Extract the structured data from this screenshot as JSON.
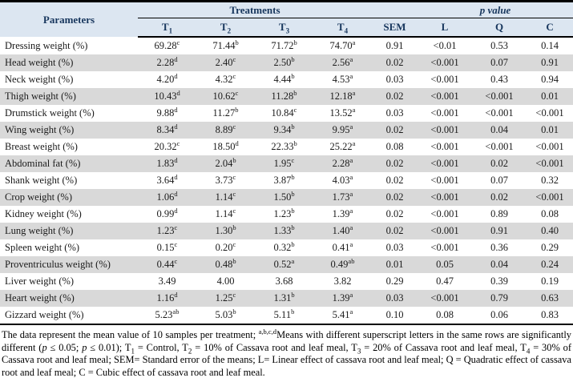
{
  "colors": {
    "header_bg": "#dce6f1",
    "header_text": "#17365d",
    "row_alt": "#d9d9d9",
    "border": "#000000"
  },
  "header": {
    "parameters": "Parameters",
    "treatments": "Treatments",
    "p_value": "p value",
    "treatment_cols": [
      {
        "base": "T",
        "sub": "1"
      },
      {
        "base": "T",
        "sub": "2"
      },
      {
        "base": "T",
        "sub": "3"
      },
      {
        "base": "T",
        "sub": "4"
      }
    ],
    "sem": "SEM",
    "effect_cols": [
      "L",
      "Q",
      "C"
    ]
  },
  "rows": [
    {
      "param": "Dressing weight (%)",
      "t": [
        [
          "69.28",
          "c"
        ],
        [
          "71.44",
          "b"
        ],
        [
          "71.72",
          "b"
        ],
        [
          "74.70",
          "a"
        ]
      ],
      "sem": "0.91",
      "l": "<0.01",
      "q": "0.53",
      "c": "0.14"
    },
    {
      "param": "Head weight (%)",
      "t": [
        [
          "2.28",
          "d"
        ],
        [
          "2.40",
          "c"
        ],
        [
          "2.50",
          "b"
        ],
        [
          "2.56",
          "a"
        ]
      ],
      "sem": "0.02",
      "l": "<0.001",
      "q": "0.07",
      "c": "0.91"
    },
    {
      "param": "Neck weight (%)",
      "t": [
        [
          "4.20",
          "d"
        ],
        [
          "4.32",
          "c"
        ],
        [
          "4.44",
          "b"
        ],
        [
          "4.53",
          "a"
        ]
      ],
      "sem": "0.03",
      "l": "<0.001",
      "q": "0.43",
      "c": "0.94"
    },
    {
      "param": "Thigh weight (%)",
      "t": [
        [
          "10.43",
          "d"
        ],
        [
          "10.62",
          "c"
        ],
        [
          "11.28",
          "b"
        ],
        [
          "12.18",
          "a"
        ]
      ],
      "sem": "0.02",
      "l": "<0.001",
      "q": "<0.001",
      "c": "0.01"
    },
    {
      "param": "Drumstick weight (%)",
      "t": [
        [
          "9.88",
          "d"
        ],
        [
          "11.27",
          "b"
        ],
        [
          "10.84",
          "c"
        ],
        [
          "13.52",
          "a"
        ]
      ],
      "sem": "0.03",
      "l": "<0.001",
      "q": "<0.001",
      "c": "<0.001"
    },
    {
      "param": "Wing weight (%)",
      "t": [
        [
          "8.34",
          "d"
        ],
        [
          "8.89",
          "c"
        ],
        [
          "9.34",
          "b"
        ],
        [
          "9.95",
          "a"
        ]
      ],
      "sem": "0.02",
      "l": "<0.001",
      "q": "0.04",
      "c": "0.01"
    },
    {
      "param": "Breast weight (%)",
      "t": [
        [
          "20.32",
          "c"
        ],
        [
          "18.50",
          "d"
        ],
        [
          "22.33",
          "b"
        ],
        [
          "25.22",
          "a"
        ]
      ],
      "sem": "0.08",
      "l": "<0.001",
      "q": "<0.001",
      "c": "<0.001"
    },
    {
      "param": "Abdominal fat (%)",
      "t": [
        [
          "1.83",
          "d"
        ],
        [
          "2.04",
          "b"
        ],
        [
          "1.95",
          "c"
        ],
        [
          "2.28",
          "a"
        ]
      ],
      "sem": "0.02",
      "l": "<0.001",
      "q": "0.02",
      "c": "<0.001"
    },
    {
      "param": "Shank weight (%)",
      "t": [
        [
          "3.64",
          "d"
        ],
        [
          "3.73",
          "c"
        ],
        [
          "3.87",
          "b"
        ],
        [
          "4.03",
          "a"
        ]
      ],
      "sem": "0.02",
      "l": "<0.001",
      "q": "0.07",
      "c": "0.32"
    },
    {
      "param": "Crop weight (%)",
      "t": [
        [
          "1.06",
          "d"
        ],
        [
          "1.14",
          "c"
        ],
        [
          "1.50",
          "b"
        ],
        [
          "1.73",
          "a"
        ]
      ],
      "sem": "0.02",
      "l": "<0.001",
      "q": "0.02",
      "c": "<0.001"
    },
    {
      "param": "Kidney weight (%)",
      "t": [
        [
          "0.99",
          "d"
        ],
        [
          "1.14",
          "c"
        ],
        [
          "1.23",
          "b"
        ],
        [
          "1.39",
          "a"
        ]
      ],
      "sem": "0.02",
      "l": "<0.001",
      "q": "0.89",
      "c": "0.08"
    },
    {
      "param": "Lung weight (%)",
      "t": [
        [
          "1.23",
          "c"
        ],
        [
          "1.30",
          "b"
        ],
        [
          "1.33",
          "b"
        ],
        [
          "1.40",
          "a"
        ]
      ],
      "sem": "0.02",
      "l": "<0.001",
      "q": "0.91",
      "c": "0.40"
    },
    {
      "param": "Spleen weight (%)",
      "t": [
        [
          "0.15",
          "c"
        ],
        [
          "0.20",
          "c"
        ],
        [
          "0.32",
          "b"
        ],
        [
          "0.41",
          "a"
        ]
      ],
      "sem": "0.03",
      "l": "<0.001",
      "q": "0.36",
      "c": "0.29"
    },
    {
      "param": "Proventriculus weight (%)",
      "t": [
        [
          "0.44",
          "c"
        ],
        [
          "0.48",
          "b"
        ],
        [
          "0.52",
          "a"
        ],
        [
          "0.49",
          "ab"
        ]
      ],
      "sem": "0.01",
      "l": "0.05",
      "q": "0.04",
      "c": "0.24"
    },
    {
      "param": "Liver weight (%)",
      "t": [
        [
          "3.49",
          ""
        ],
        [
          "4.00",
          ""
        ],
        [
          "3.68",
          ""
        ],
        [
          "3.82",
          ""
        ]
      ],
      "sem": "0.29",
      "l": "0.47",
      "q": "0.39",
      "c": "0.19"
    },
    {
      "param": "Heart weight (%)",
      "t": [
        [
          "1.16",
          "d"
        ],
        [
          "1.25",
          "c"
        ],
        [
          "1.31",
          "b"
        ],
        [
          "1.39",
          "a"
        ]
      ],
      "sem": "0.03",
      "l": "<0.001",
      "q": "0.79",
      "c": "0.63"
    },
    {
      "param": "Gizzard weight (%)",
      "t": [
        [
          "5.23",
          "ab"
        ],
        [
          "5.03",
          "b"
        ],
        [
          "5.11",
          "b"
        ],
        [
          "5.41",
          "a"
        ]
      ],
      "sem": "0.10",
      "l": "0.08",
      "q": "0.06",
      "c": "0.83"
    }
  ],
  "footnote_segments": [
    {
      "k": "t",
      "v": "The data represent the mean value of 10 samples per treatment; "
    },
    {
      "k": "sup",
      "v": "a,b,c,d"
    },
    {
      "k": "t",
      "v": "Means with different superscript letters in the same rows are significantly different ("
    },
    {
      "k": "i",
      "v": "p"
    },
    {
      "k": "t",
      "v": " ≤ 0.05; "
    },
    {
      "k": "i",
      "v": "p"
    },
    {
      "k": "t",
      "v": " ≤ 0.01); T"
    },
    {
      "k": "sub",
      "v": "1"
    },
    {
      "k": "t",
      "v": " = Control, T"
    },
    {
      "k": "sub",
      "v": "2"
    },
    {
      "k": "t",
      "v": " = 10% of Cassava root and leaf meal, T"
    },
    {
      "k": "sub",
      "v": "3"
    },
    {
      "k": "t",
      "v": " = 20% of Cassava root and leaf meal, T"
    },
    {
      "k": "sub",
      "v": "4"
    },
    {
      "k": "t",
      "v": " = 30% of Cassava root and leaf meal; SEM= Standard error of the means; L= Linear effect of cassava root and leaf meal; Q = Quadratic effect of cassava root and leaf meal; C = Cubic effect of cassava root and leaf meal."
    }
  ]
}
